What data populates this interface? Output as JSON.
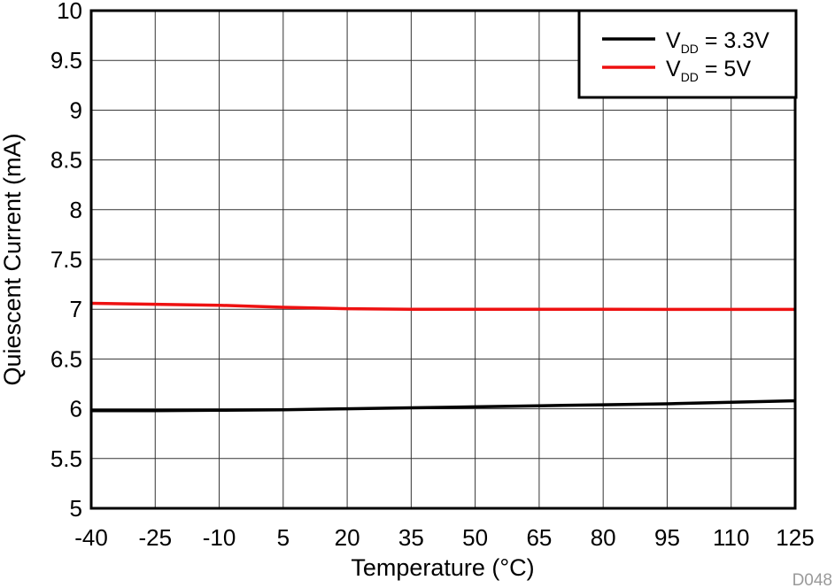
{
  "chart_data": {
    "type": "line",
    "title": "",
    "xlabel": "Temperature (°C)",
    "ylabel": "Quiescent Current (mA)",
    "xlim": [
      -40,
      125
    ],
    "ylim": [
      5,
      10
    ],
    "x_ticks": [
      -40,
      -25,
      -10,
      5,
      20,
      35,
      50,
      65,
      80,
      95,
      110,
      125
    ],
    "y_ticks": [
      5,
      5.5,
      6,
      6.5,
      7,
      7.5,
      8,
      8.5,
      9,
      9.5,
      10
    ],
    "y_tick_labels": [
      "5",
      "5.5",
      "6",
      "6.5",
      "7",
      "7.5",
      "8",
      "8.5",
      "9",
      "9.5",
      "10"
    ],
    "grid": true,
    "legend_position": "top-right",
    "series": [
      {
        "name": "VDD = 3.3V",
        "legend_main": "V",
        "legend_sub": "DD",
        "legend_rest": " = 3.3V",
        "color": "#000000",
        "x": [
          -40,
          -25,
          -10,
          5,
          20,
          35,
          50,
          65,
          80,
          95,
          110,
          125
        ],
        "y": [
          5.98,
          5.98,
          5.985,
          5.99,
          6.0,
          6.01,
          6.02,
          6.03,
          6.04,
          6.05,
          6.065,
          6.08
        ]
      },
      {
        "name": "VDD = 5V",
        "legend_main": "V",
        "legend_sub": "DD",
        "legend_rest": " = 5V",
        "color": "#ee1111",
        "x": [
          -40,
          -25,
          -10,
          5,
          20,
          35,
          50,
          65,
          80,
          95,
          110,
          125
        ],
        "y": [
          7.06,
          7.05,
          7.04,
          7.02,
          7.005,
          7.0,
          7.0,
          7.0,
          7.0,
          6.998,
          6.998,
          6.998
        ]
      }
    ]
  },
  "figure_code": "D048"
}
